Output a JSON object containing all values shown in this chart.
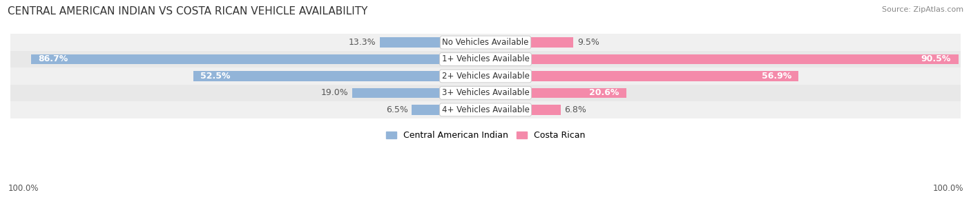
{
  "title": "CENTRAL AMERICAN INDIAN VS COSTA RICAN VEHICLE AVAILABILITY",
  "source": "Source: ZipAtlas.com",
  "categories": [
    "No Vehicles Available",
    "1+ Vehicles Available",
    "2+ Vehicles Available",
    "3+ Vehicles Available",
    "4+ Vehicles Available"
  ],
  "central_american_values": [
    13.3,
    86.7,
    52.5,
    19.0,
    6.5
  ],
  "costa_rican_values": [
    9.5,
    90.5,
    56.9,
    20.6,
    6.8
  ],
  "central_american_color": "#92b4d8",
  "central_american_color_dark": "#6a9cc8",
  "costa_rican_color": "#f48aaa",
  "costa_rican_color_dark": "#e8507a",
  "row_bg_colors": [
    "#f0f0f0",
    "#e8e8e8"
  ],
  "max_value": 100.0,
  "label_fontsize": 9,
  "title_fontsize": 11,
  "legend_label_central": "Central American Indian",
  "legend_label_costa": "Costa Rican",
  "bottom_left_label": "100.0%",
  "bottom_right_label": "100.0%",
  "inside_label_threshold": 20
}
